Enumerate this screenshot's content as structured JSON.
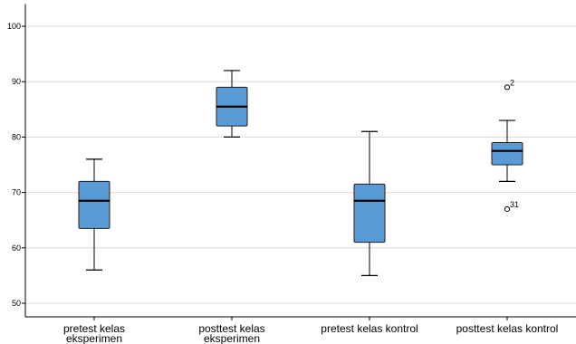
{
  "chart_data": {
    "type": "boxplot",
    "ylim": [
      48,
      104
    ],
    "y_ticks": [
      50,
      60,
      70,
      80,
      90,
      100
    ],
    "y_tick_labels": [
      "50",
      "60",
      "70",
      "80",
      "90",
      "100"
    ],
    "grid": true,
    "box_color": "#5b9bd5",
    "categories": [
      {
        "label_lines": [
          "pretest kelas",
          "eksperimen"
        ],
        "min": 56,
        "q1": 63.5,
        "median": 68.5,
        "q3": 72,
        "max": 76,
        "outliers": []
      },
      {
        "label_lines": [
          "posttest kelas",
          "eksperimen"
        ],
        "min": 80,
        "q1": 82,
        "median": 85.5,
        "q3": 89,
        "max": 92,
        "outliers": []
      },
      {
        "label_lines": [
          "pretest kelas kontrol"
        ],
        "min": 55,
        "q1": 61,
        "median": 68.5,
        "q3": 71.5,
        "max": 81,
        "outliers": []
      },
      {
        "label_lines": [
          "posttest kelas kontrol"
        ],
        "min": 72,
        "q1": 75,
        "median": 77.5,
        "q3": 79,
        "max": 83,
        "outliers": [
          {
            "value": 89,
            "label": "2"
          },
          {
            "value": 67,
            "label": "31"
          }
        ]
      }
    ]
  }
}
